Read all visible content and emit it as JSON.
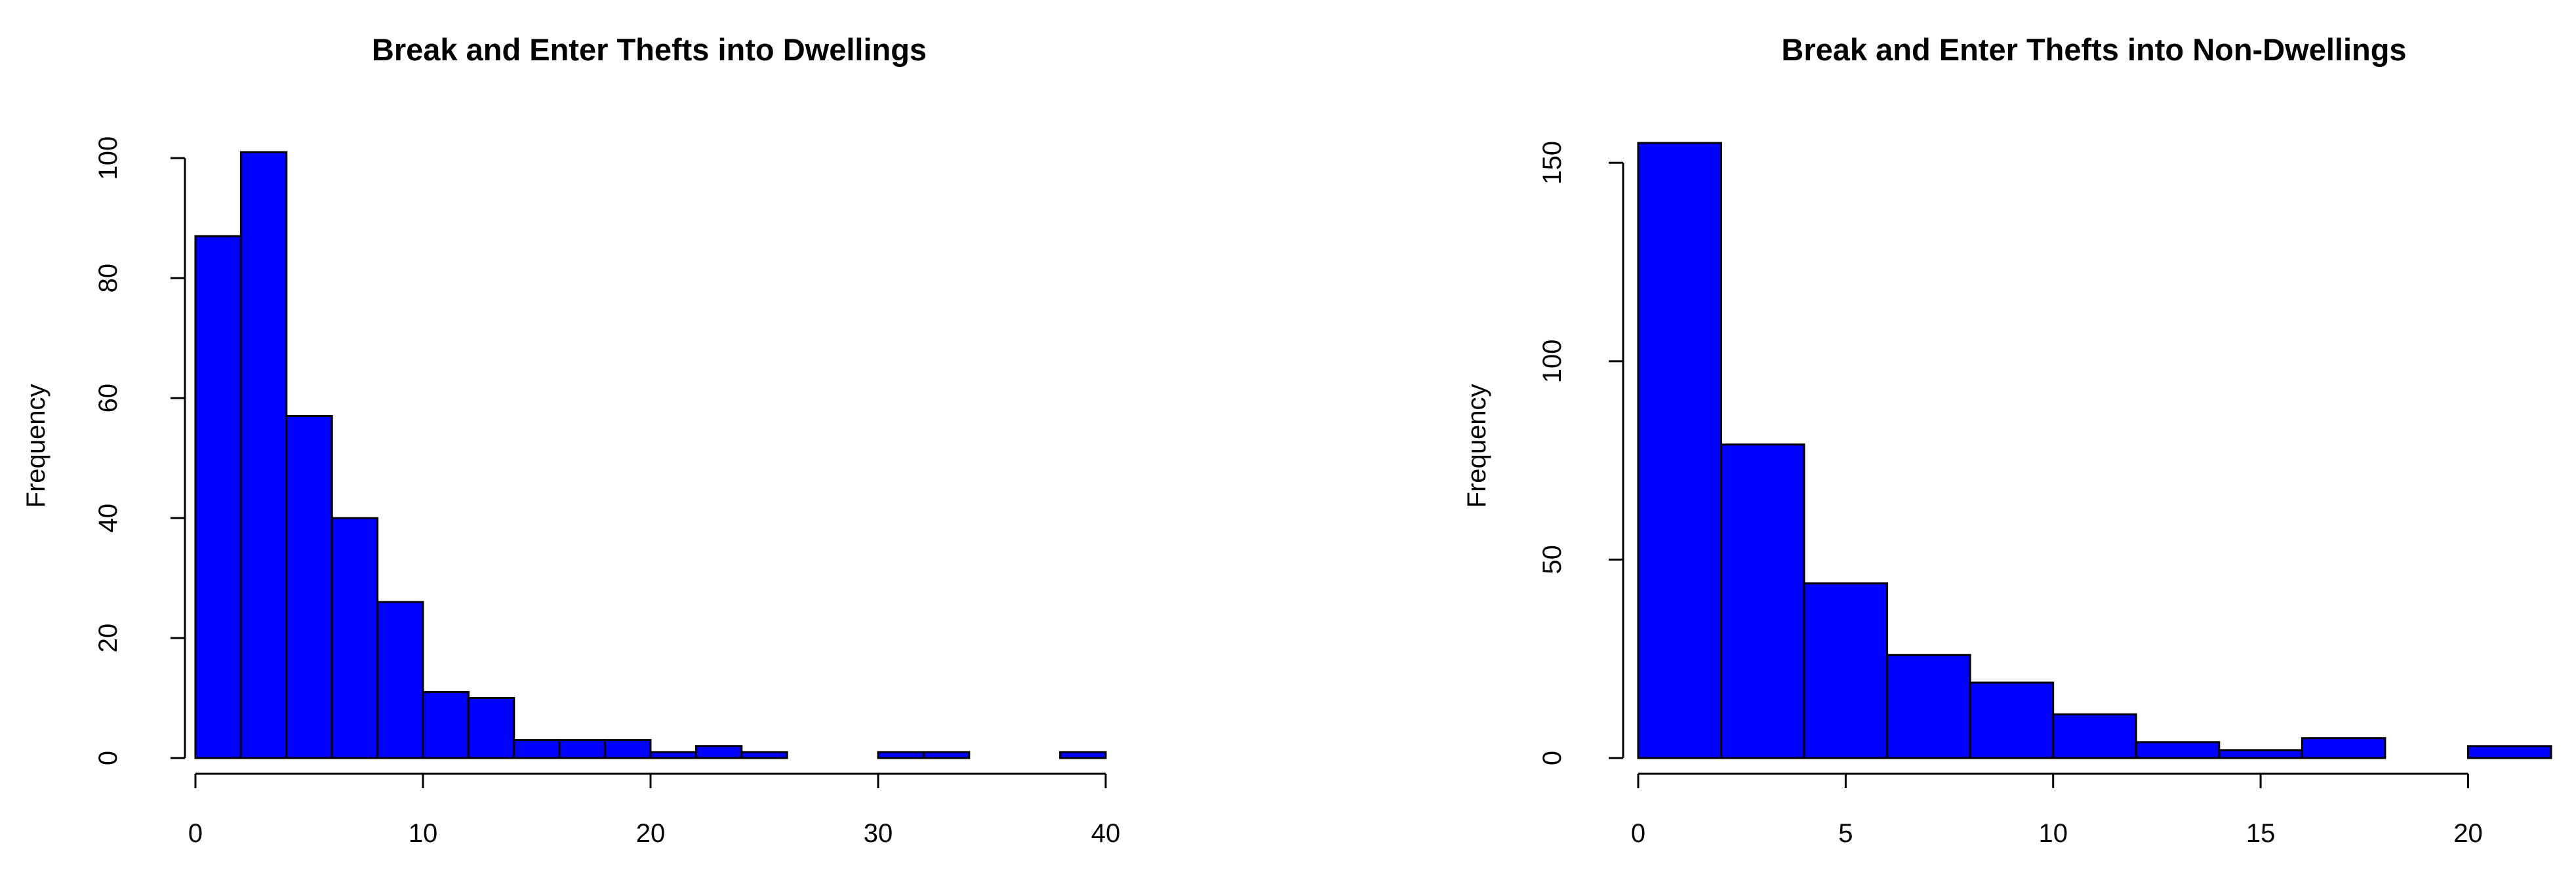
{
  "chart_data": [
    {
      "type": "bar",
      "title": "Break and Enter Thefts into Dwellings",
      "xlabel": "",
      "ylabel": "Frequency",
      "bin_edges": [
        0,
        2,
        4,
        6,
        8,
        10,
        12,
        14,
        16,
        18,
        20,
        22,
        24,
        26,
        28,
        30,
        32,
        34,
        36,
        38,
        40
      ],
      "values": [
        87,
        101,
        57,
        40,
        26,
        11,
        10,
        3,
        3,
        3,
        1,
        2,
        1,
        0,
        0,
        1,
        1,
        0,
        0,
        1
      ],
      "xlim": [
        0,
        40
      ],
      "ylim": [
        0,
        101
      ],
      "x_ticks": [
        0,
        10,
        20,
        30,
        40
      ],
      "x_tick_labels": [
        "0",
        "10",
        "20",
        "30",
        "40"
      ],
      "y_ticks": [
        0,
        20,
        40,
        60,
        80,
        100
      ],
      "y_tick_labels": [
        "0",
        "20",
        "40",
        "60",
        "80",
        "100"
      ],
      "bar_color": "#0000FF",
      "grid": false
    },
    {
      "type": "bar",
      "title": "Break and Enter Thefts into Non-Dwellings",
      "xlabel": "",
      "ylabel": "Frequency",
      "bin_edges": [
        0,
        2,
        4,
        6,
        8,
        10,
        12,
        14,
        16,
        18,
        20,
        22
      ],
      "values": [
        155,
        79,
        44,
        26,
        19,
        11,
        4,
        2,
        5,
        0,
        3
      ],
      "xlim": [
        0,
        22
      ],
      "ylim": [
        0,
        155
      ],
      "x_ticks": [
        0,
        5,
        10,
        15,
        20
      ],
      "x_tick_labels": [
        "0",
        "5",
        "10",
        "15",
        "20"
      ],
      "y_ticks": [
        0,
        50,
        100,
        150
      ],
      "y_tick_labels": [
        "0",
        "50",
        "100",
        "150"
      ],
      "bar_color": "#0000FF",
      "grid": false
    }
  ]
}
